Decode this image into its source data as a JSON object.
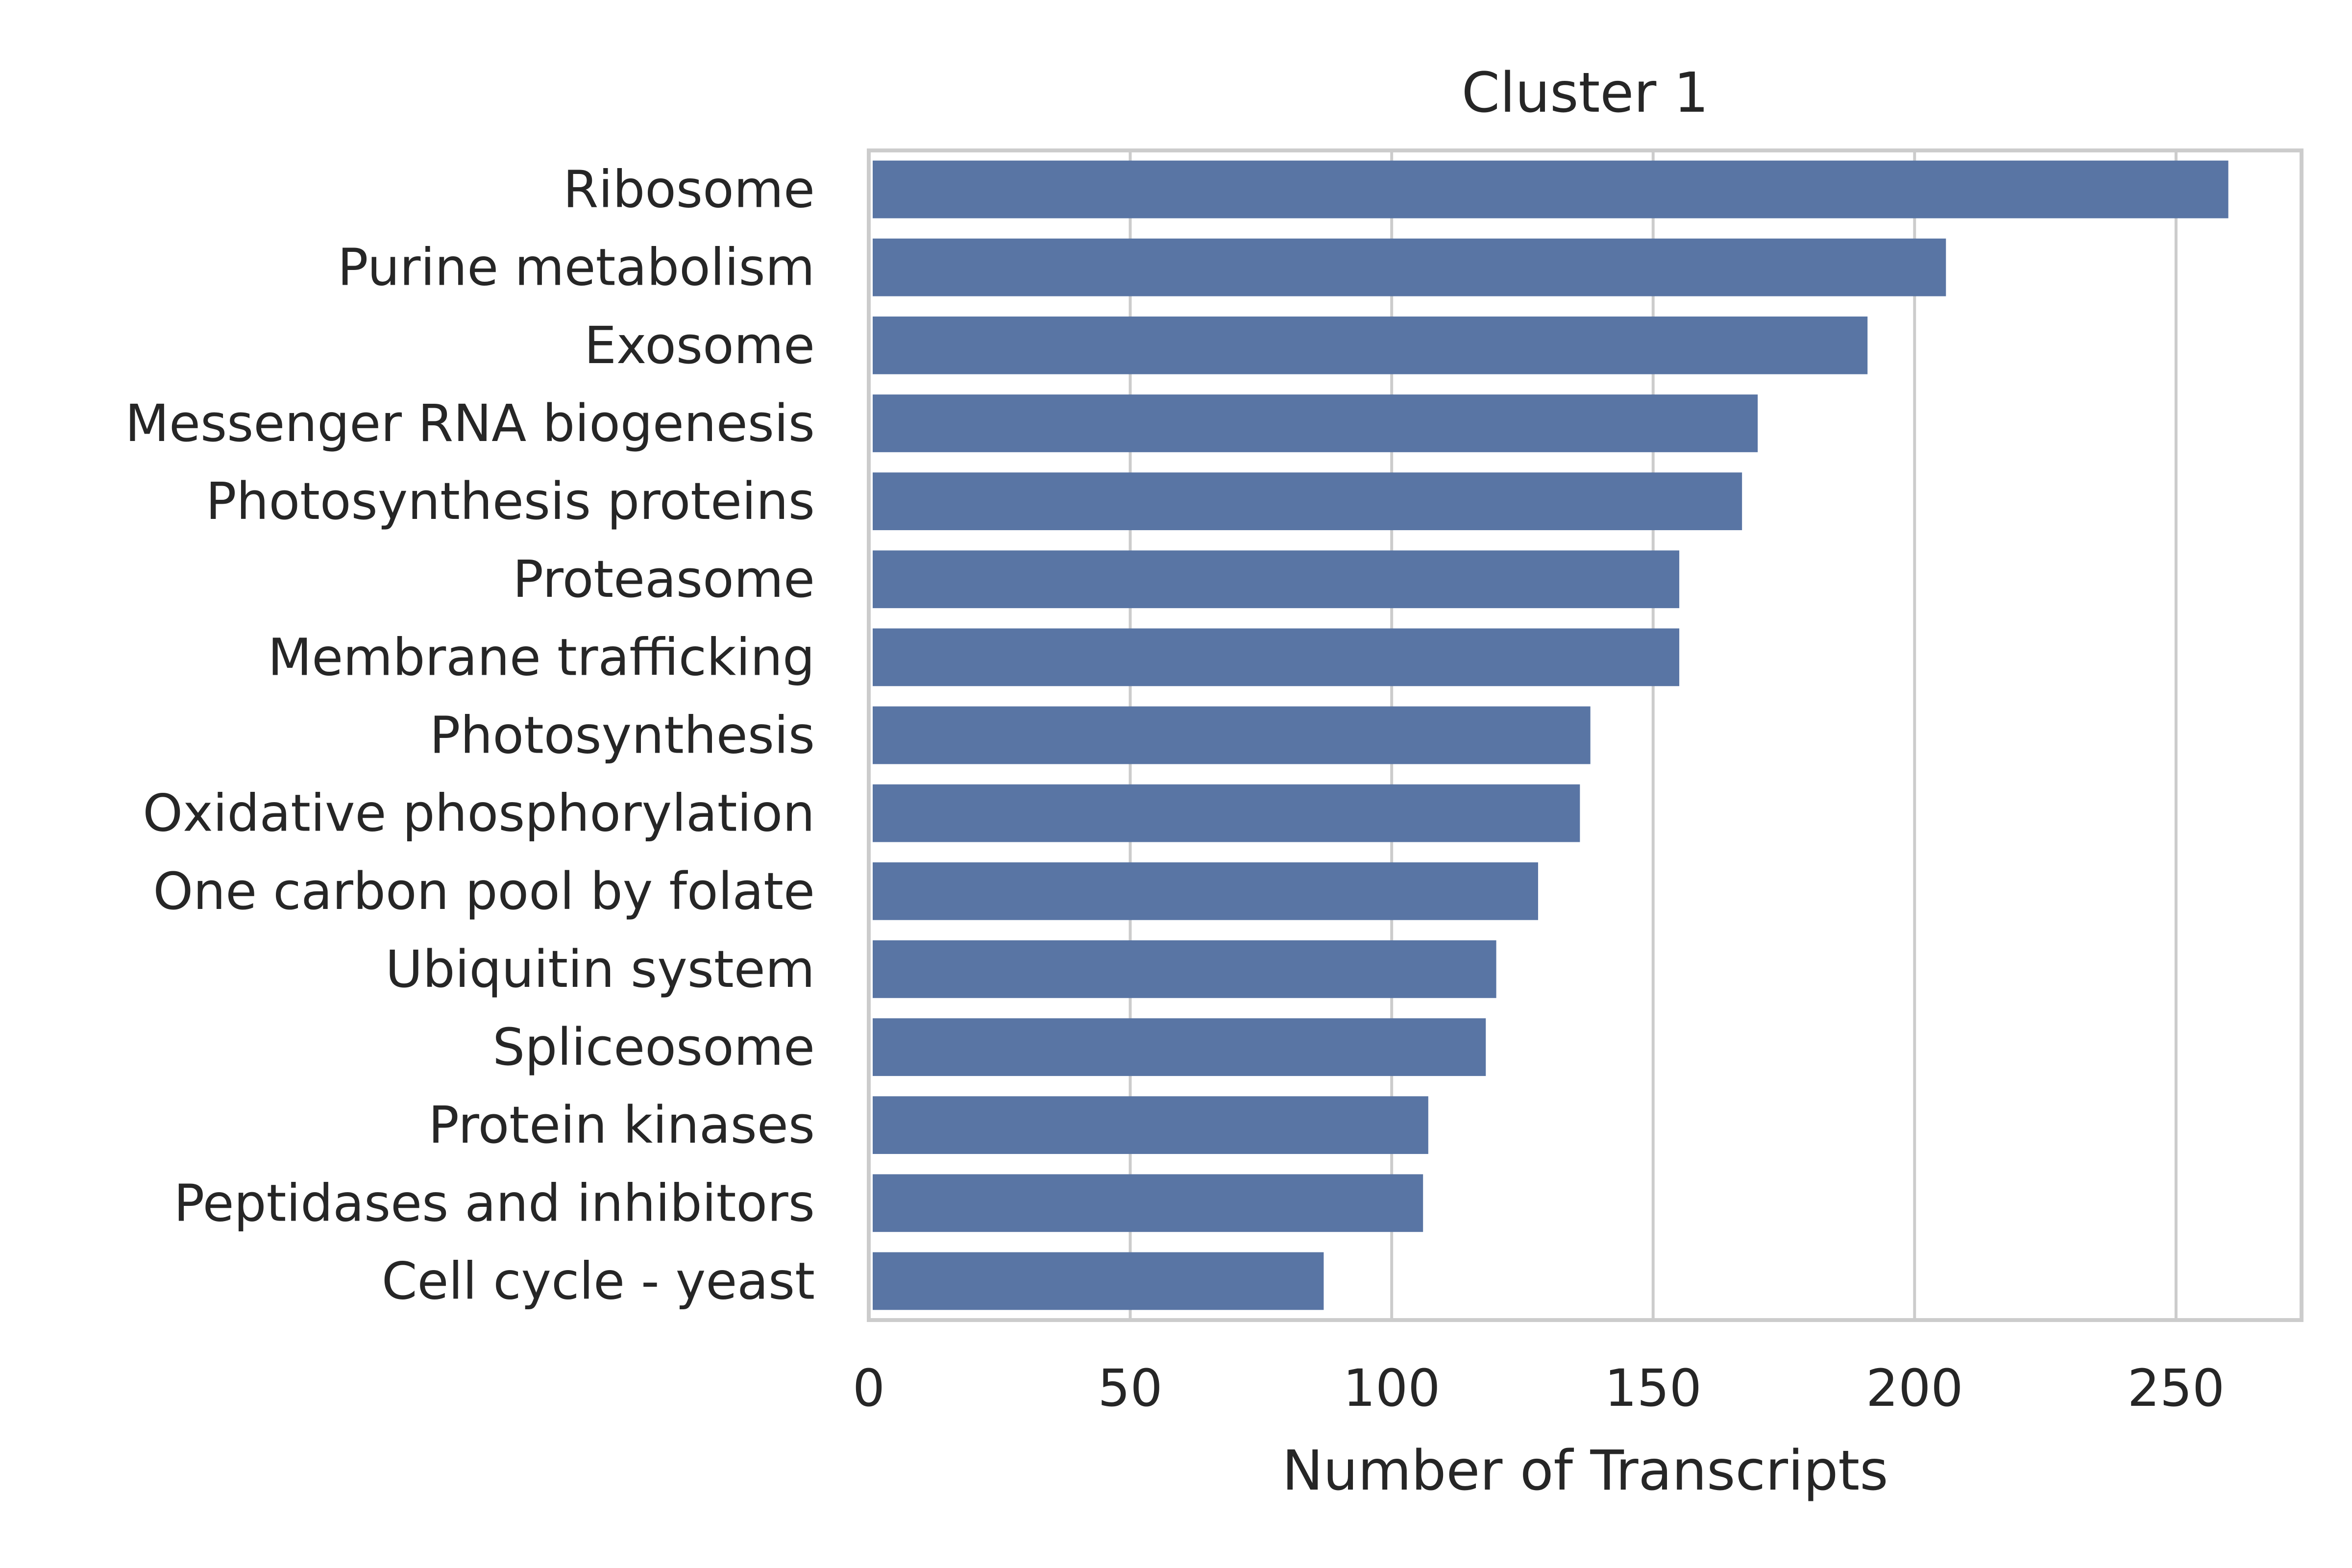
{
  "chart_data": {
    "type": "bar",
    "orientation": "horizontal",
    "title": "Cluster 1",
    "xlabel": "Number of Transcripts",
    "ylabel": "",
    "xlim": [
      0,
      274
    ],
    "xticks": [
      0,
      50,
      100,
      150,
      200,
      250
    ],
    "grid": true,
    "bar_color": "#5975a4",
    "categories": [
      "Ribosome",
      "Purine metabolism",
      "Exosome",
      "Messenger RNA biogenesis",
      "Photosynthesis proteins",
      "Proteasome",
      "Membrane trafficking",
      "Photosynthesis",
      "Oxidative phosphorylation",
      "One carbon pool by folate",
      "Ubiquitin system",
      "Spliceosome",
      "Protein kinases",
      "Peptidases and inhibitors",
      "Cell cycle - yeast"
    ],
    "values": [
      260,
      206,
      191,
      170,
      167,
      155,
      155,
      138,
      136,
      128,
      120,
      118,
      107,
      106,
      87
    ]
  }
}
